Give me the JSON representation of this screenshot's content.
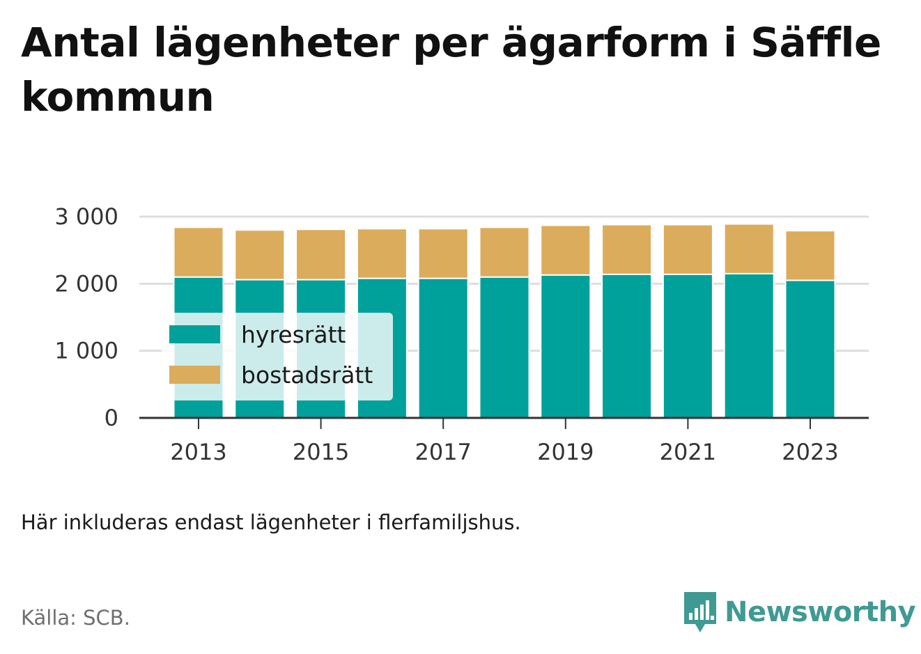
{
  "title": "Antal lägenheter per ägarform i Säffle kommun",
  "note": "Här inkluderas endast lägenheter i flerfamiljshus.",
  "source": "Källa: SCB.",
  "brand": {
    "name": "Newsworthy",
    "logo_icon": "bar-chart-speech-bubble-icon",
    "color": "#3f9a93"
  },
  "colors": {
    "hyresratt": "#00a19a",
    "bostadsratt": "#dbac5b",
    "grid": "#dddddd",
    "axis": "#333333"
  },
  "chart_data": {
    "type": "bar",
    "stacked": true,
    "x": [
      2013,
      2014,
      2015,
      2016,
      2017,
      2018,
      2019,
      2020,
      2021,
      2022,
      2023
    ],
    "xticks": [
      "2013",
      "2015",
      "2017",
      "2019",
      "2021",
      "2023"
    ],
    "yticks": [
      "0",
      "1 000",
      "2 000",
      "3 000"
    ],
    "yticks_values": [
      0,
      1000,
      2000,
      3000
    ],
    "ylim": [
      0,
      3000
    ],
    "grid": true,
    "legend_position": "inside-left",
    "series": [
      {
        "name": "hyresrätt",
        "color": "#00a19a",
        "values": [
          2100,
          2060,
          2060,
          2080,
          2080,
          2100,
          2130,
          2140,
          2140,
          2150,
          2050
        ]
      },
      {
        "name": "bostadsrätt",
        "color": "#dbac5b",
        "values": [
          740,
          740,
          750,
          740,
          740,
          740,
          740,
          740,
          740,
          740,
          740
        ]
      }
    ]
  }
}
